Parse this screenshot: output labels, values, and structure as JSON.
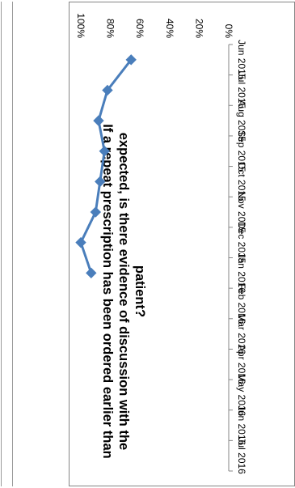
{
  "chart_data": {
    "type": "line",
    "title_lines": [
      "If a repeat prescription  has been ordered earlier than",
      "expected, is there evidence of discussion with the",
      "patient?"
    ],
    "categories": [
      "Jun 2015",
      "Jul 2015",
      "Aug 2015",
      "Sep 2015",
      "Oct 2015",
      "Nov 2015",
      "Dec 2015",
      "Jan 2016",
      "Feb 2016",
      "Mar 2016",
      "Apr 2016",
      "May 2016",
      "Jun 2016",
      "Jul 2016"
    ],
    "y_tick_labels": [
      "0%",
      "20%",
      "40%",
      "60%",
      "80%",
      "100%"
    ],
    "ylim": [
      0,
      1.1
    ],
    "series": [
      {
        "values": [
          0.66,
          0.82,
          0.88,
          0.84,
          0.87,
          0.9,
          1.0,
          0.93,
          null,
          null,
          null,
          null,
          null,
          null
        ],
        "color": "#4a7ebb",
        "marker": "diamond"
      }
    ],
    "orientation": "rotated-90-clockwise",
    "grid": false,
    "legend": "none"
  }
}
